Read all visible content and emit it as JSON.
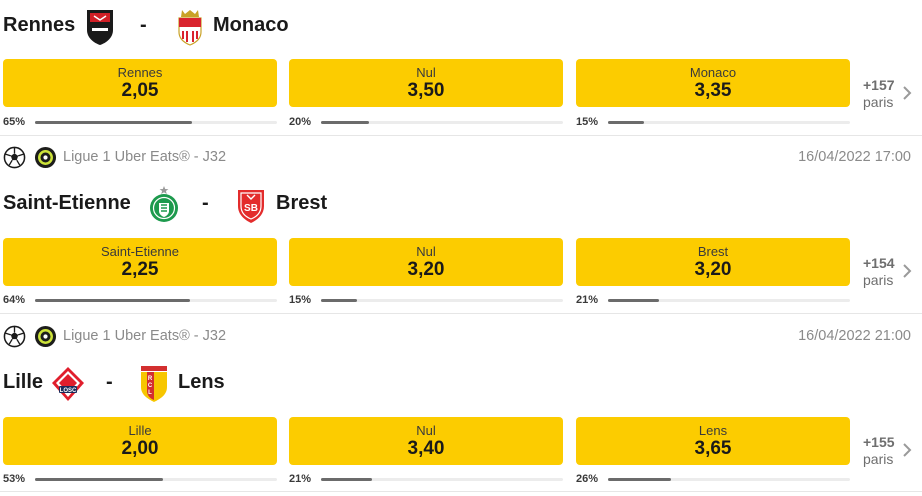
{
  "matches": [
    {
      "league": "",
      "datetime": "",
      "home": {
        "name": "Rennes",
        "logo": "rennes-crest-icon"
      },
      "separator": "-",
      "away": {
        "name": "Monaco",
        "logo": "monaco-crest-icon"
      },
      "odds": [
        {
          "label": "Rennes",
          "value": "2,05",
          "pct_text": "65%",
          "pct": 65
        },
        {
          "label": "Nul",
          "value": "3,50",
          "pct_text": "20%",
          "pct": 20
        },
        {
          "label": "Monaco",
          "value": "3,35",
          "pct_text": "15%",
          "pct": 15
        }
      ],
      "more_count": "+157",
      "more_label": "paris"
    },
    {
      "league": "Ligue 1 Uber Eats® - J32",
      "datetime": "16/04/2022 17:00",
      "home": {
        "name": "Saint-Etienne",
        "logo": "saint-etienne-crest-icon"
      },
      "separator": "-",
      "away": {
        "name": "Brest",
        "logo": "brest-crest-icon"
      },
      "odds": [
        {
          "label": "Saint-Etienne",
          "value": "2,25",
          "pct_text": "64%",
          "pct": 64
        },
        {
          "label": "Nul",
          "value": "3,20",
          "pct_text": "15%",
          "pct": 15
        },
        {
          "label": "Brest",
          "value": "3,20",
          "pct_text": "21%",
          "pct": 21
        }
      ],
      "more_count": "+154",
      "more_label": "paris"
    },
    {
      "league": "Ligue 1 Uber Eats® - J32",
      "datetime": "16/04/2022 21:00",
      "home": {
        "name": "Lille",
        "logo": "lille-crest-icon"
      },
      "separator": "-",
      "away": {
        "name": "Lens",
        "logo": "lens-crest-icon"
      },
      "odds": [
        {
          "label": "Lille",
          "value": "2,00",
          "pct_text": "53%",
          "pct": 53
        },
        {
          "label": "Nul",
          "value": "3,40",
          "pct_text": "21%",
          "pct": 21
        },
        {
          "label": "Lens",
          "value": "3,65",
          "pct_text": "26%",
          "pct": 26
        }
      ],
      "more_count": "+155",
      "more_label": "paris"
    }
  ],
  "icons": {
    "sport": "football-icon",
    "league": "ligue1-icon",
    "more": "chevron-right-icon"
  },
  "colors": {
    "odd_button": "#fccc00",
    "bar_fill": "#6b6b6b",
    "muted_text": "#8a8a8a"
  }
}
